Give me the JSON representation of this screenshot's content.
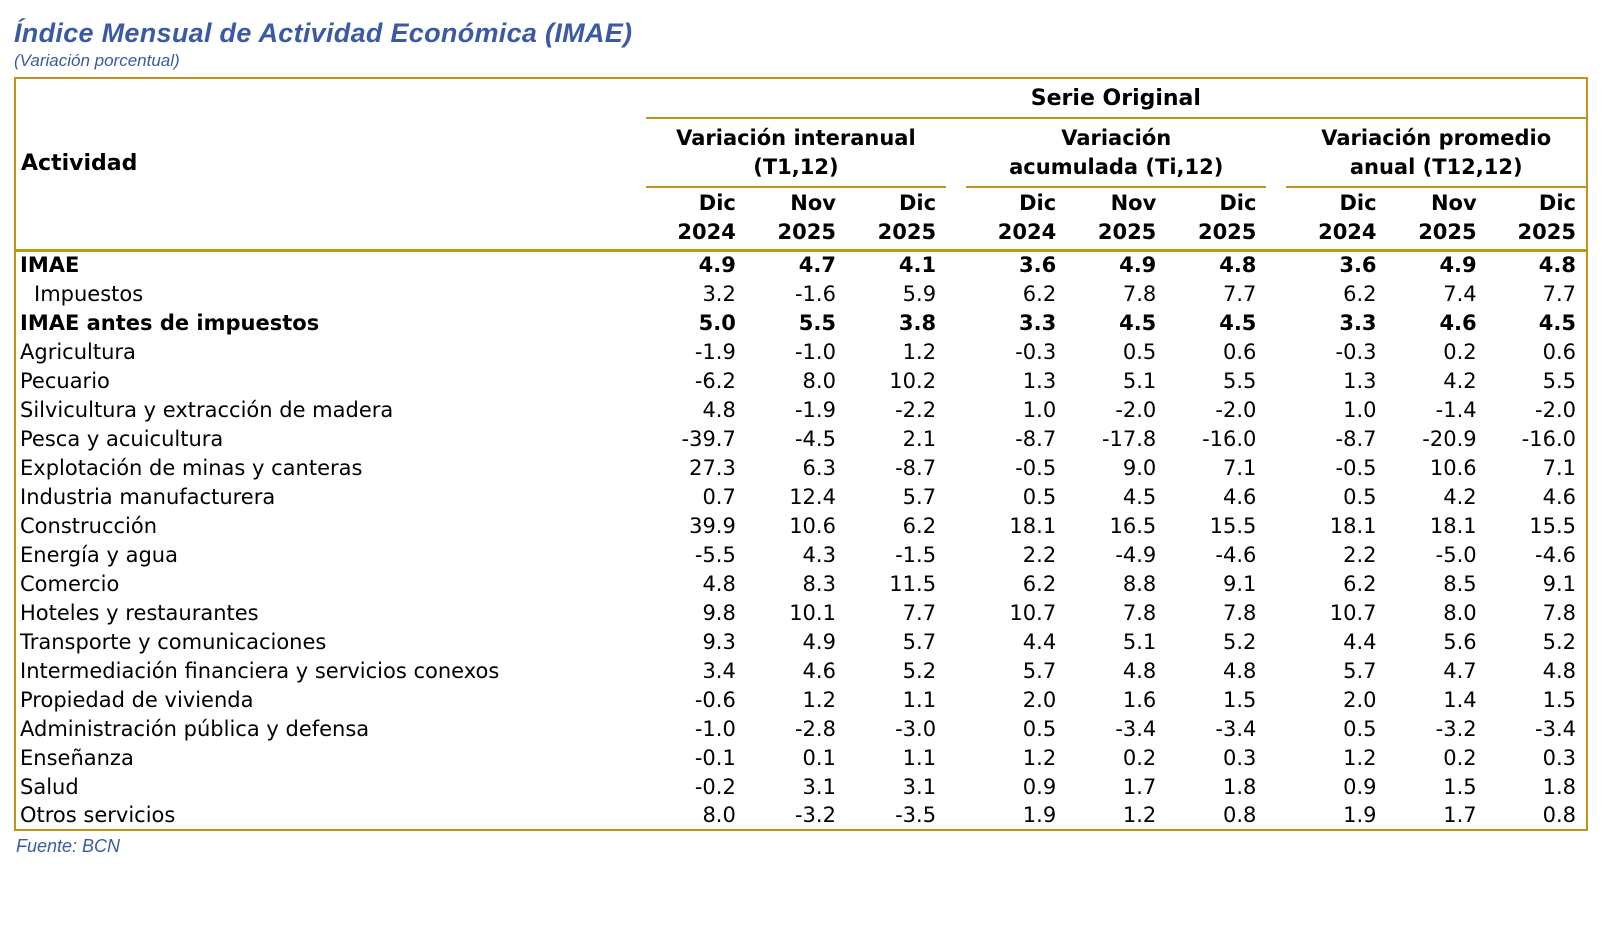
{
  "page": {
    "title": "Índice Mensual de Actividad Económica (IMAE)",
    "subtitle": "(Variación porcentual)",
    "source": "Fuente: BCN"
  },
  "colors": {
    "accent_gold": "#C39318",
    "heading_blue": "#3A5AA5",
    "text": "#000000"
  },
  "table": {
    "activity_header": "Actividad",
    "serie_header": "Serie Original",
    "groups": [
      {
        "line1": "Variación interanual",
        "line2": "(T1,12)"
      },
      {
        "line1": "Variación",
        "line2": "acumulada (Ti,12)"
      },
      {
        "line1": "Variación promedio",
        "line2": "anual (T12,12)"
      }
    ],
    "periods": [
      {
        "month": "Dic",
        "year": "2024"
      },
      {
        "month": "Nov",
        "year": "2025"
      },
      {
        "month": "Dic",
        "year": "2025"
      }
    ],
    "rows": [
      {
        "label": "IMAE",
        "bold": true,
        "indent": false,
        "values": [
          "4.9",
          "4.7",
          "4.1",
          "3.6",
          "4.9",
          "4.8",
          "3.6",
          "4.9",
          "4.8"
        ]
      },
      {
        "label": "Impuestos",
        "bold": false,
        "indent": true,
        "values": [
          "3.2",
          "-1.6",
          "5.9",
          "6.2",
          "7.8",
          "7.7",
          "6.2",
          "7.4",
          "7.7"
        ]
      },
      {
        "label": "IMAE antes de impuestos",
        "bold": true,
        "indent": false,
        "values": [
          "5.0",
          "5.5",
          "3.8",
          "3.3",
          "4.5",
          "4.5",
          "3.3",
          "4.6",
          "4.5"
        ]
      },
      {
        "label": "Agricultura",
        "bold": false,
        "indent": false,
        "values": [
          "-1.9",
          "-1.0",
          "1.2",
          "-0.3",
          "0.5",
          "0.6",
          "-0.3",
          "0.2",
          "0.6"
        ]
      },
      {
        "label": "Pecuario",
        "bold": false,
        "indent": false,
        "values": [
          "-6.2",
          "8.0",
          "10.2",
          "1.3",
          "5.1",
          "5.5",
          "1.3",
          "4.2",
          "5.5"
        ]
      },
      {
        "label": "Silvicultura y extracción de madera",
        "bold": false,
        "indent": false,
        "values": [
          "4.8",
          "-1.9",
          "-2.2",
          "1.0",
          "-2.0",
          "-2.0",
          "1.0",
          "-1.4",
          "-2.0"
        ]
      },
      {
        "label": "Pesca y acuicultura",
        "bold": false,
        "indent": false,
        "values": [
          "-39.7",
          "-4.5",
          "2.1",
          "-8.7",
          "-17.8",
          "-16.0",
          "-8.7",
          "-20.9",
          "-16.0"
        ]
      },
      {
        "label": "Explotación de minas y canteras",
        "bold": false,
        "indent": false,
        "values": [
          "27.3",
          "6.3",
          "-8.7",
          "-0.5",
          "9.0",
          "7.1",
          "-0.5",
          "10.6",
          "7.1"
        ]
      },
      {
        "label": "Industria manufacturera",
        "bold": false,
        "indent": false,
        "values": [
          "0.7",
          "12.4",
          "5.7",
          "0.5",
          "4.5",
          "4.6",
          "0.5",
          "4.2",
          "4.6"
        ]
      },
      {
        "label": "Construcción",
        "bold": false,
        "indent": false,
        "values": [
          "39.9",
          "10.6",
          "6.2",
          "18.1",
          "16.5",
          "15.5",
          "18.1",
          "18.1",
          "15.5"
        ]
      },
      {
        "label": "Energía y agua",
        "bold": false,
        "indent": false,
        "values": [
          "-5.5",
          "4.3",
          "-1.5",
          "2.2",
          "-4.9",
          "-4.6",
          "2.2",
          "-5.0",
          "-4.6"
        ]
      },
      {
        "label": "Comercio",
        "bold": false,
        "indent": false,
        "values": [
          "4.8",
          "8.3",
          "11.5",
          "6.2",
          "8.8",
          "9.1",
          "6.2",
          "8.5",
          "9.1"
        ]
      },
      {
        "label": "Hoteles y restaurantes",
        "bold": false,
        "indent": false,
        "values": [
          "9.8",
          "10.1",
          "7.7",
          "10.7",
          "7.8",
          "7.8",
          "10.7",
          "8.0",
          "7.8"
        ]
      },
      {
        "label": "Transporte y comunicaciones",
        "bold": false,
        "indent": false,
        "values": [
          "9.3",
          "4.9",
          "5.7",
          "4.4",
          "5.1",
          "5.2",
          "4.4",
          "5.6",
          "5.2"
        ]
      },
      {
        "label": "Intermediación financiera y servicios conexos",
        "bold": false,
        "indent": false,
        "values": [
          "3.4",
          "4.6",
          "5.2",
          "5.7",
          "4.8",
          "4.8",
          "5.7",
          "4.7",
          "4.8"
        ]
      },
      {
        "label": "Propiedad de vivienda",
        "bold": false,
        "indent": false,
        "values": [
          "-0.6",
          "1.2",
          "1.1",
          "2.0",
          "1.6",
          "1.5",
          "2.0",
          "1.4",
          "1.5"
        ]
      },
      {
        "label": "Administración pública y defensa",
        "bold": false,
        "indent": false,
        "values": [
          "-1.0",
          "-2.8",
          "-3.0",
          "0.5",
          "-3.4",
          "-3.4",
          "0.5",
          "-3.2",
          "-3.4"
        ]
      },
      {
        "label": "Enseñanza",
        "bold": false,
        "indent": false,
        "values": [
          "-0.1",
          "0.1",
          "1.1",
          "1.2",
          "0.2",
          "0.3",
          "1.2",
          "0.2",
          "0.3"
        ]
      },
      {
        "label": "Salud",
        "bold": false,
        "indent": false,
        "values": [
          "-0.2",
          "3.1",
          "3.1",
          "0.9",
          "1.7",
          "1.8",
          "0.9",
          "1.5",
          "1.8"
        ]
      },
      {
        "label": "Otros servicios",
        "bold": false,
        "indent": false,
        "values": [
          "8.0",
          "-3.2",
          "-3.5",
          "1.9",
          "1.2",
          "0.8",
          "1.9",
          "1.7",
          "0.8"
        ]
      }
    ]
  }
}
